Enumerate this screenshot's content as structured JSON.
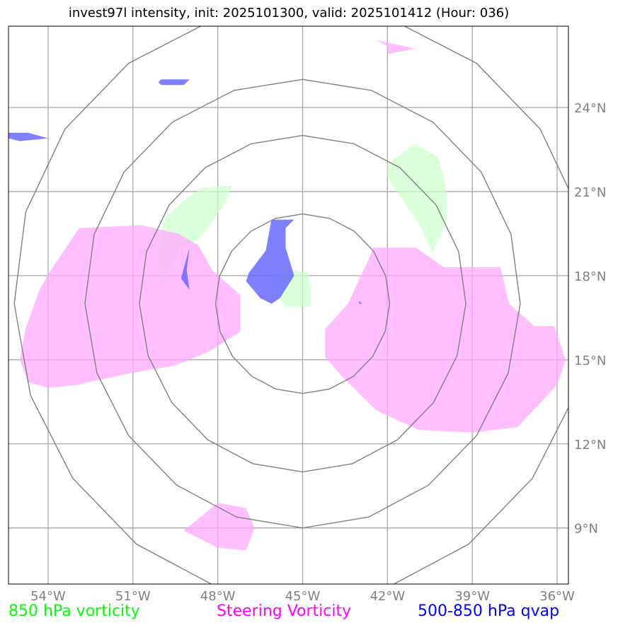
{
  "title": "invest97l intensity, init: 2025101300, valid: 2025101412 (Hour: 036)",
  "chart_data": {
    "type": "map",
    "title": "invest97l intensity, init: 2025101300, valid: 2025101412 (Hour: 036)",
    "xlim": [
      -55.4,
      -35.6
    ],
    "ylim": [
      7.0,
      26.9
    ],
    "x_ticks": [
      {
        "value": -54,
        "label": "54°W"
      },
      {
        "value": -51,
        "label": "51°W"
      },
      {
        "value": -48,
        "label": "48°W"
      },
      {
        "value": -45,
        "label": "45°W"
      },
      {
        "value": -42,
        "label": "42°W"
      },
      {
        "value": -39,
        "label": "39°W"
      },
      {
        "value": -36,
        "label": "36°W"
      }
    ],
    "y_ticks": [
      {
        "value": 24,
        "label": "24°N"
      },
      {
        "value": 21,
        "label": "21°N"
      },
      {
        "value": 18,
        "label": "18°N"
      },
      {
        "value": 15,
        "label": "15°N"
      },
      {
        "value": 12,
        "label": "12°N"
      },
      {
        "value": 9,
        "label": "9°N"
      }
    ],
    "grid": true,
    "range_rings_center": [
      -45.0,
      17.0
    ],
    "range_rings_deg": [
      3.2,
      6.0,
      8.0,
      10.6
    ],
    "colors": {
      "vort850": "#ccffcc",
      "steering": "#ffaaff",
      "qvap": "#6060ff",
      "ring": "#808080",
      "grid": "#a8a8a8"
    },
    "series": [
      {
        "name": "850 hPa vorticity",
        "color": "#00ff00",
        "polygons": [
          [
            [
              -47.2,
              26.9
            ],
            [
              -47.2,
              26.9
            ],
            [
              -47.2,
              26.9
            ]
          ],
          [
            [
              -48.0,
              21.2
            ],
            [
              -47.5,
              21.2
            ],
            [
              -47.8,
              20.5
            ],
            [
              -48.2,
              19.9
            ],
            [
              -48.7,
              19.3
            ],
            [
              -49.3,
              19.0
            ],
            [
              -50.0,
              17.6
            ],
            [
              -50.1,
              18.8
            ],
            [
              -49.9,
              20.0
            ],
            [
              -49.3,
              20.6
            ],
            [
              -48.6,
              21.1
            ]
          ],
          [
            [
              -42.0,
              22.0
            ],
            [
              -41.0,
              22.7
            ],
            [
              -40.2,
              22.2
            ],
            [
              -39.9,
              21.0
            ],
            [
              -39.9,
              20.0
            ],
            [
              -40.4,
              18.8
            ],
            [
              -40.8,
              19.7
            ],
            [
              -41.4,
              20.6
            ],
            [
              -42.0,
              21.5
            ]
          ],
          [
            [
              -45.3,
              18.2
            ],
            [
              -44.8,
              18.1
            ],
            [
              -44.7,
              17.4
            ],
            [
              -44.7,
              16.9
            ],
            [
              -45.6,
              16.9
            ],
            [
              -46.0,
              17.5
            ],
            [
              -46.2,
              18.0
            ]
          ]
        ]
      },
      {
        "name": "Steering Vorticity",
        "color": "#ff00ff",
        "polygons": [
          [
            [
              -42.0,
              26.2
            ],
            [
              -42.4,
              26.4
            ],
            [
              -41.0,
              26.1
            ],
            [
              -42.0,
              25.9
            ]
          ],
          [
            [
              -52.9,
              19.7
            ],
            [
              -50.7,
              19.8
            ],
            [
              -49.4,
              19.5
            ],
            [
              -48.7,
              19.1
            ],
            [
              -48.2,
              18.2
            ],
            [
              -47.2,
              17.3
            ],
            [
              -47.2,
              16.0
            ],
            [
              -48.3,
              15.3
            ],
            [
              -49.5,
              14.8
            ],
            [
              -51.2,
              14.5
            ],
            [
              -53.0,
              14.1
            ],
            [
              -54.0,
              14.0
            ],
            [
              -54.7,
              14.2
            ],
            [
              -55.0,
              15.0
            ],
            [
              -54.8,
              16.1
            ],
            [
              -54.3,
              17.5
            ],
            [
              -53.9,
              18.2
            ]
          ],
          [
            [
              -41.0,
              19.0
            ],
            [
              -40.0,
              18.3
            ],
            [
              -38.0,
              18.3
            ],
            [
              -37.7,
              17.0
            ],
            [
              -36.8,
              16.2
            ],
            [
              -36.1,
              16.2
            ],
            [
              -35.7,
              15.0
            ],
            [
              -36.0,
              14.1
            ],
            [
              -37.4,
              12.6
            ],
            [
              -39.0,
              12.4
            ],
            [
              -40.9,
              12.5
            ],
            [
              -42.4,
              13.2
            ],
            [
              -43.6,
              14.4
            ],
            [
              -44.2,
              15.1
            ],
            [
              -44.2,
              16.1
            ],
            [
              -43.4,
              17.0
            ],
            [
              -42.7,
              18.5
            ],
            [
              -42.5,
              19.0
            ]
          ],
          [
            [
              -48.0,
              9.9
            ],
            [
              -47.0,
              9.7
            ],
            [
              -46.7,
              9.0
            ],
            [
              -47.0,
              8.2
            ],
            [
              -48.0,
              8.3
            ],
            [
              -49.2,
              8.9
            ]
          ]
        ]
      },
      {
        "name": "500-850 hPa qvap",
        "color": "#0000ff",
        "polygons": [
          [
            [
              -50.0,
              25.0
            ],
            [
              -49.0,
              25.0
            ],
            [
              -49.2,
              24.8
            ],
            [
              -50.0,
              24.8
            ],
            [
              -50.1,
              24.9
            ]
          ],
          [
            [
              -55.4,
              23.1
            ],
            [
              -54.7,
              23.1
            ],
            [
              -54.0,
              22.9
            ],
            [
              -55.0,
              22.8
            ],
            [
              -55.4,
              22.9
            ]
          ],
          [
            [
              -46.1,
              20.0
            ],
            [
              -45.3,
              20.0
            ],
            [
              -45.6,
              19.7
            ],
            [
              -45.6,
              19.0
            ],
            [
              -45.3,
              18.0
            ],
            [
              -45.8,
              17.2
            ],
            [
              -46.1,
              17.0
            ],
            [
              -46.5,
              17.2
            ],
            [
              -47.0,
              17.8
            ],
            [
              -46.9,
              18.1
            ],
            [
              -46.3,
              18.9
            ]
          ],
          [
            [
              -49.0,
              19.0
            ],
            [
              -49.1,
              18.2
            ],
            [
              -49.0,
              17.5
            ],
            [
              -49.3,
              17.9
            ]
          ],
          [
            [
              -43.0,
              17.1
            ],
            [
              -43.0,
              17.0
            ],
            [
              -42.9,
              17.0
            ]
          ]
        ]
      }
    ]
  },
  "legend": {
    "vort850": "850 hPa vorticity",
    "steering": "Steering Vorticity",
    "qvap": "500-850 hPa qvap"
  }
}
